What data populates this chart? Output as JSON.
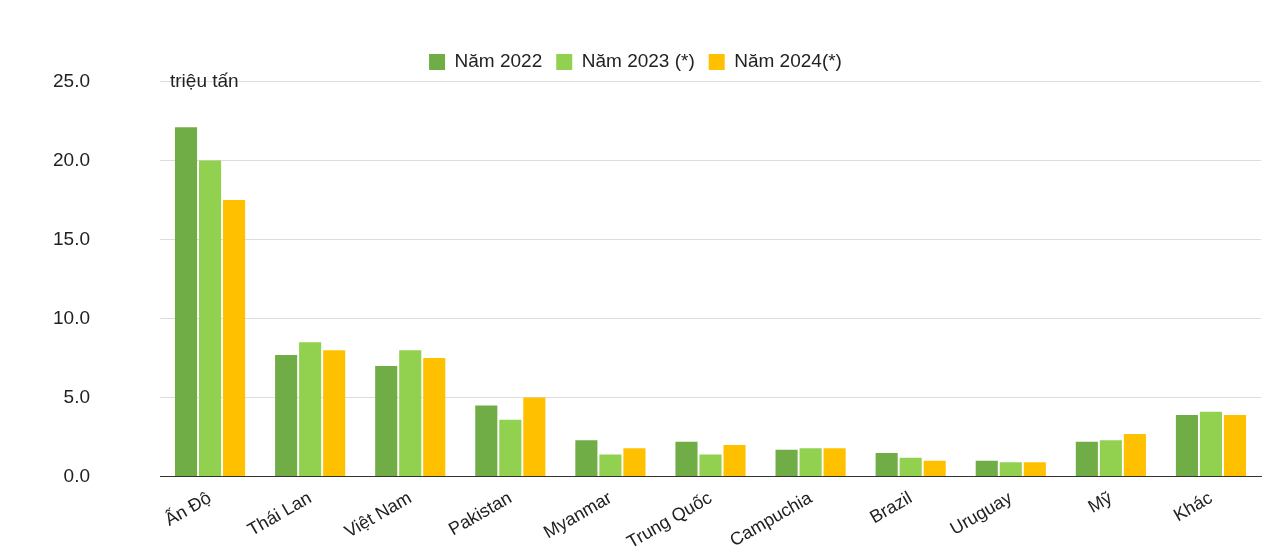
{
  "chart_data": {
    "type": "bar",
    "ylabel": "triệu tấn",
    "categories": [
      "Ấn Độ",
      "Thái Lan",
      "Việt Nam",
      "Pakistan",
      "Myanmar",
      "Trung Quốc",
      "Campuchia",
      "Brazil",
      "Uruguay",
      "Mỹ",
      "Khác"
    ],
    "series": [
      {
        "name": "Năm 2022",
        "color": "#70ad47",
        "values": [
          22.1,
          7.7,
          7.0,
          4.5,
          2.3,
          2.2,
          1.7,
          1.5,
          1.0,
          2.2,
          3.9
        ]
      },
      {
        "name": "Năm 2023 (*)",
        "color": "#92d050",
        "values": [
          20.0,
          8.5,
          8.0,
          3.6,
          1.4,
          1.4,
          1.8,
          1.2,
          0.9,
          2.3,
          4.1
        ]
      },
      {
        "name": "Năm 2024(*)",
        "color": "#ffc000",
        "values": [
          17.5,
          8.0,
          7.5,
          5.0,
          1.8,
          2.0,
          1.8,
          1.0,
          0.9,
          2.7,
          3.9
        ]
      }
    ],
    "ylim": [
      0,
      25
    ],
    "yticks": [
      {
        "value": 0,
        "label": "0.0"
      },
      {
        "value": 5,
        "label": "5.0"
      },
      {
        "value": 10,
        "label": "10.0"
      },
      {
        "value": 15,
        "label": "15.0"
      },
      {
        "value": 20,
        "label": "20.0"
      },
      {
        "value": 25,
        "label": "25.0"
      }
    ],
    "grid": "y",
    "legend": "top"
  }
}
